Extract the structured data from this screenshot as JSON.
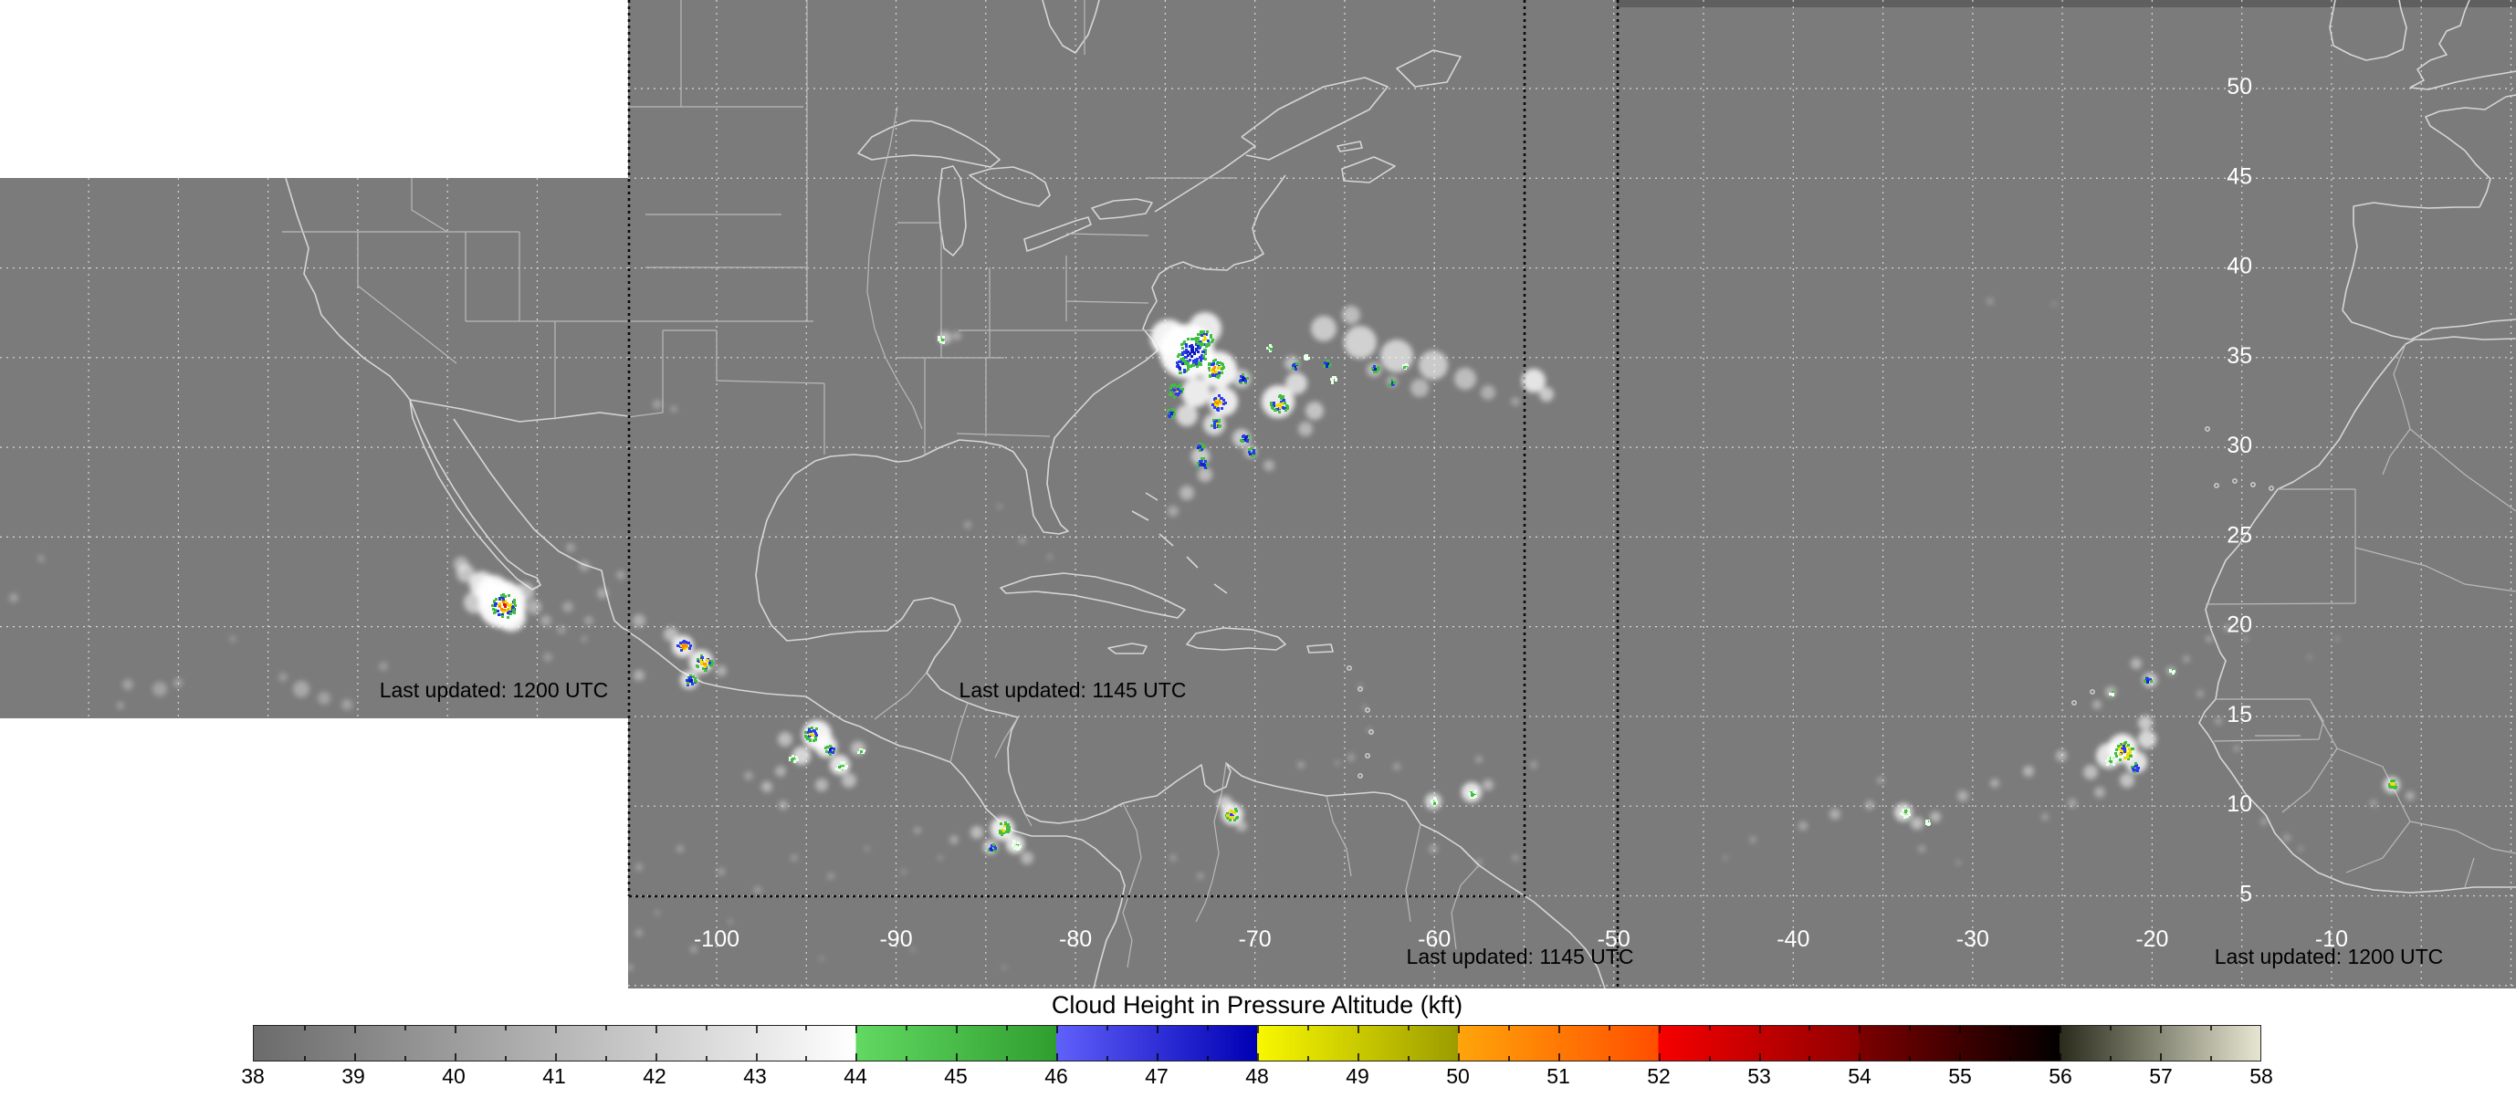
{
  "map": {
    "background": "#7b7b7b",
    "top_strip_color": "#5f5f5f",
    "coast_color": "#d6d6d6",
    "inner_border_color": "#b9b9b9",
    "graticule_color": "#e2e2e2",
    "domain_border_color": "#0a0a0a",
    "geo_label_color": "#ffffff",
    "updated_label_color": "#000000",
    "lon_ticks": [
      {
        "label": "-100",
        "lon": -100
      },
      {
        "label": "-90",
        "lon": -90
      },
      {
        "label": "-80",
        "lon": -80
      },
      {
        "label": "-70",
        "lon": -70
      },
      {
        "label": "-60",
        "lon": -60
      },
      {
        "label": "-50",
        "lon": -50
      },
      {
        "label": "-40",
        "lon": -40
      },
      {
        "label": "-30",
        "lon": -30
      },
      {
        "label": "-20",
        "lon": -20
      },
      {
        "label": "-10",
        "lon": -10
      }
    ],
    "lat_ticks": [
      {
        "label": "50",
        "lat": 50
      },
      {
        "label": "45",
        "lat": 45
      },
      {
        "label": "40",
        "lat": 40
      },
      {
        "label": "35",
        "lat": 35
      },
      {
        "label": "30",
        "lat": 30
      },
      {
        "label": "25",
        "lat": 25
      },
      {
        "label": "20",
        "lat": 20
      },
      {
        "label": "15",
        "lat": 15
      },
      {
        "label": "10",
        "lat": 10
      },
      {
        "label": "5",
        "lat": 5
      }
    ],
    "updated_labels": [
      {
        "id": "goes-west",
        "text": "Last updated: 1200 UTC"
      },
      {
        "id": "goes-east",
        "text": "Last updated: 1145 UTC"
      },
      {
        "id": "goes-east-south",
        "text": "Last updated: 1145 UTC"
      },
      {
        "id": "meteosat",
        "text": "Last updated: 1200 UTC"
      }
    ]
  },
  "colorbar": {
    "title": "Cloud Height in Pressure Altitude (kft)",
    "min": 38,
    "max": 58,
    "tick_labels": [
      "38",
      "39",
      "40",
      "41",
      "42",
      "43",
      "44",
      "45",
      "46",
      "47",
      "48",
      "49",
      "50",
      "51",
      "52",
      "53",
      "54",
      "55",
      "56",
      "57",
      "58"
    ],
    "segments": [
      {
        "from": 38,
        "to": 44,
        "c1": "#6b6b6b",
        "c2": "#ffffff"
      },
      {
        "from": 44,
        "to": 46,
        "c1": "#62d962",
        "c2": "#2f9e2f"
      },
      {
        "from": 46,
        "to": 48,
        "c1": "#6060fa",
        "c2": "#0000b4"
      },
      {
        "from": 48,
        "to": 50,
        "c1": "#f8f800",
        "c2": "#9c9c00"
      },
      {
        "from": 50,
        "to": 52,
        "c1": "#ffa50a",
        "c2": "#ff4e00"
      },
      {
        "from": 52,
        "to": 54,
        "c1": "#f70000",
        "c2": "#8f0000"
      },
      {
        "from": 54,
        "to": 56,
        "c1": "#7c0000",
        "c2": "#020000"
      },
      {
        "from": 56,
        "to": 58,
        "c1": "#2b2b1c",
        "c2": "#e6e6d2"
      }
    ]
  },
  "clouds": {
    "palettes": {
      "conv": [
        "#3fbf3f",
        "#2238e6",
        "#eede00",
        "#ff8c00",
        "#e31212"
      ],
      "blue": [
        "#3fbf3f",
        "#2a3cf0",
        "#1422cf",
        "#0a18b8"
      ],
      "blueyellow": [
        "#3fbf3f",
        "#2a3cf0",
        "#eede00"
      ],
      "yellow": [
        "#3fbf3f",
        "#2a3cf0",
        "#eede00",
        "#ff9800"
      ],
      "orange": [
        "#2a3cf0",
        "#eede00",
        "#ff8c00"
      ],
      "green": [
        "#e8ffe8",
        "#3fbf3f"
      ],
      "yellowgreen": [
        "#3fbf3f",
        "#eede00"
      ],
      "greenblue": [
        "#3fbf3f",
        "#eede00",
        "#2a3cf0"
      ],
      "mixed": [
        "#3fbf3f",
        "#eede00",
        "#2a3cf0",
        "#ffe000"
      ]
    },
    "blobs": [
      [
        550,
        662,
        26,
        0.95
      ],
      [
        540,
        648,
        18,
        0.9
      ],
      [
        528,
        640,
        14,
        0.8
      ],
      [
        560,
        676,
        16,
        0.85
      ],
      [
        520,
        660,
        12,
        0.6
      ],
      [
        575,
        648,
        10,
        0.5
      ],
      [
        585,
        665,
        8,
        0.4
      ],
      [
        510,
        628,
        10,
        0.55
      ],
      [
        505,
        618,
        8,
        0.45
      ],
      [
        598,
        680,
        6,
        0.35
      ],
      [
        615,
        690,
        5,
        0.25
      ],
      [
        140,
        750,
        6,
        0.3
      ],
      [
        175,
        755,
        8,
        0.3
      ],
      [
        195,
        748,
        5,
        0.3
      ],
      [
        330,
        755,
        9,
        0.35
      ],
      [
        355,
        765,
        7,
        0.3
      ],
      [
        380,
        772,
        6,
        0.3
      ],
      [
        310,
        742,
        5,
        0.25
      ],
      [
        132,
        773,
        4,
        0.3
      ],
      [
        15,
        655,
        5,
        0.3
      ],
      [
        45,
        612,
        4,
        0.25
      ],
      [
        420,
        730,
        5,
        0.25
      ],
      [
        600,
        720,
        5,
        0.25
      ],
      [
        640,
        700,
        4,
        0.2
      ],
      [
        255,
        700,
        4,
        0.2
      ],
      [
        1300,
        385,
        30,
        0.95
      ],
      [
        1280,
        370,
        20,
        0.9
      ],
      [
        1320,
        360,
        18,
        0.85
      ],
      [
        1335,
        405,
        20,
        0.9
      ],
      [
        1310,
        430,
        16,
        0.85
      ],
      [
        1340,
        440,
        16,
        0.85
      ],
      [
        1300,
        455,
        12,
        0.7
      ],
      [
        1330,
        465,
        12,
        0.7
      ],
      [
        1360,
        480,
        10,
        0.6
      ],
      [
        1315,
        500,
        10,
        0.6
      ],
      [
        1320,
        520,
        8,
        0.5
      ],
      [
        1300,
        540,
        8,
        0.45
      ],
      [
        1285,
        560,
        6,
        0.35
      ],
      [
        1360,
        415,
        10,
        0.6
      ],
      [
        1400,
        440,
        18,
        0.85
      ],
      [
        1420,
        420,
        12,
        0.7
      ],
      [
        1415,
        398,
        8,
        0.5
      ],
      [
        1440,
        450,
        10,
        0.55
      ],
      [
        1430,
        470,
        8,
        0.45
      ],
      [
        1370,
        495,
        7,
        0.5
      ],
      [
        1390,
        510,
        6,
        0.4
      ],
      [
        1505,
        405,
        8,
        0.5
      ],
      [
        1525,
        418,
        6,
        0.4
      ],
      [
        1450,
        360,
        14,
        0.6
      ],
      [
        1490,
        375,
        18,
        0.65
      ],
      [
        1530,
        390,
        18,
        0.65
      ],
      [
        1570,
        400,
        16,
        0.6
      ],
      [
        1605,
        415,
        12,
        0.5
      ],
      [
        1480,
        345,
        10,
        0.5
      ],
      [
        1555,
        425,
        10,
        0.45
      ],
      [
        1630,
        430,
        8,
        0.4
      ],
      [
        1660,
        440,
        5,
        0.3
      ],
      [
        1680,
        417,
        13,
        0.8
      ],
      [
        1694,
        432,
        8,
        0.6
      ],
      [
        1035,
        370,
        7,
        0.5
      ],
      [
        1048,
        368,
        5,
        0.35
      ],
      [
        720,
        443,
        5,
        0.3
      ],
      [
        738,
        448,
        4,
        0.25
      ],
      [
        1060,
        575,
        4,
        0.3
      ],
      [
        1120,
        592,
        4,
        0.25
      ],
      [
        1095,
        555,
        3,
        0.25
      ],
      [
        1150,
        610,
        3,
        0.25
      ],
      [
        748,
        708,
        12,
        0.85
      ],
      [
        768,
        725,
        13,
        0.85
      ],
      [
        755,
        745,
        10,
        0.75
      ],
      [
        735,
        695,
        8,
        0.5
      ],
      [
        700,
        680,
        7,
        0.4
      ],
      [
        660,
        650,
        6,
        0.35
      ],
      [
        680,
        630,
        5,
        0.3
      ],
      [
        640,
        620,
        6,
        0.3
      ],
      [
        625,
        600,
        5,
        0.3
      ],
      [
        700,
        740,
        6,
        0.4
      ],
      [
        790,
        735,
        6,
        0.4
      ],
      [
        622,
        665,
        6,
        0.3
      ],
      [
        645,
        680,
        5,
        0.3
      ],
      [
        895,
        805,
        16,
        0.9
      ],
      [
        905,
        818,
        12,
        0.85
      ],
      [
        920,
        838,
        11,
        0.8
      ],
      [
        878,
        828,
        10,
        0.7
      ],
      [
        860,
        810,
        8,
        0.5
      ],
      [
        940,
        820,
        8,
        0.5
      ],
      [
        930,
        855,
        8,
        0.5
      ],
      [
        900,
        860,
        7,
        0.45
      ],
      [
        855,
        845,
        6,
        0.4
      ],
      [
        840,
        862,
        6,
        0.45
      ],
      [
        858,
        882,
        5,
        0.4
      ],
      [
        820,
        850,
        5,
        0.3
      ],
      [
        660,
        915,
        4,
        0.3
      ],
      [
        700,
        950,
        4,
        0.3
      ],
      [
        745,
        930,
        4,
        0.3
      ],
      [
        790,
        955,
        4,
        0.3
      ],
      [
        830,
        975,
        4,
        0.3
      ],
      [
        700,
        1022,
        4,
        0.3
      ],
      [
        760,
        1040,
        4,
        0.3
      ],
      [
        690,
        1060,
        4,
        0.25
      ],
      [
        640,
        1010,
        4,
        0.25
      ],
      [
        870,
        940,
        4,
        0.25
      ],
      [
        910,
        960,
        4,
        0.25
      ],
      [
        950,
        930,
        3,
        0.25
      ],
      [
        990,
        955,
        3,
        0.25
      ],
      [
        1030,
        940,
        3,
        0.25
      ],
      [
        720,
        1000,
        3,
        0.25
      ],
      [
        800,
        1010,
        3,
        0.25
      ],
      [
        900,
        1050,
        3,
        0.2
      ],
      [
        1000,
        1040,
        3,
        0.2
      ],
      [
        1100,
        1060,
        3,
        0.2
      ],
      [
        1098,
        908,
        13,
        0.85
      ],
      [
        1112,
        925,
        10,
        0.8
      ],
      [
        1085,
        928,
        8,
        0.6
      ],
      [
        1070,
        912,
        7,
        0.5
      ],
      [
        1125,
        940,
        7,
        0.45
      ],
      [
        1045,
        920,
        5,
        0.35
      ],
      [
        1005,
        910,
        4,
        0.3
      ],
      [
        1350,
        892,
        12,
        0.8
      ],
      [
        1342,
        880,
        8,
        0.6
      ],
      [
        1360,
        905,
        6,
        0.45
      ],
      [
        1570,
        878,
        9,
        0.7
      ],
      [
        1612,
        868,
        11,
        0.8
      ],
      [
        1630,
        860,
        6,
        0.45
      ],
      [
        1530,
        840,
        4,
        0.3
      ],
      [
        1480,
        830,
        4,
        0.3
      ],
      [
        1465,
        836,
        3,
        0.25
      ],
      [
        1425,
        838,
        4,
        0.3
      ],
      [
        1680,
        838,
        4,
        0.3
      ],
      [
        1620,
        832,
        4,
        0.3
      ],
      [
        1570,
        930,
        5,
        0.3
      ],
      [
        1620,
        945,
        4,
        0.25
      ],
      [
        1660,
        940,
        4,
        0.25
      ],
      [
        1500,
        800,
        3,
        0.25
      ],
      [
        1495,
        775,
        3,
        0.25
      ],
      [
        1490,
        752,
        3,
        0.25
      ],
      [
        1285,
        940,
        4,
        0.25
      ],
      [
        1315,
        960,
        4,
        0.25
      ],
      [
        1975,
        905,
        5,
        0.35
      ],
      [
        2010,
        892,
        6,
        0.4
      ],
      [
        2048,
        882,
        5,
        0.4
      ],
      [
        2085,
        890,
        10,
        0.7
      ],
      [
        2100,
        902,
        7,
        0.5
      ],
      [
        2120,
        895,
        6,
        0.45
      ],
      [
        2150,
        872,
        6,
        0.4
      ],
      [
        2185,
        858,
        5,
        0.4
      ],
      [
        2222,
        845,
        6,
        0.45
      ],
      [
        2258,
        828,
        6,
        0.45
      ],
      [
        2290,
        846,
        8,
        0.5
      ],
      [
        2310,
        828,
        14,
        0.8
      ],
      [
        2325,
        820,
        16,
        0.9
      ],
      [
        2340,
        835,
        12,
        0.8
      ],
      [
        2352,
        810,
        10,
        0.7
      ],
      [
        2350,
        792,
        8,
        0.6
      ],
      [
        2330,
        855,
        8,
        0.55
      ],
      [
        2300,
        868,
        6,
        0.4
      ],
      [
        2270,
        880,
        5,
        0.35
      ],
      [
        2240,
        895,
        4,
        0.3
      ],
      [
        2355,
        745,
        8,
        0.6
      ],
      [
        2340,
        727,
        6,
        0.45
      ],
      [
        2312,
        758,
        6,
        0.45
      ],
      [
        2378,
        735,
        5,
        0.4
      ],
      [
        2395,
        722,
        4,
        0.3
      ],
      [
        2297,
        772,
        5,
        0.4
      ],
      [
        2420,
        700,
        4,
        0.3
      ],
      [
        2440,
        688,
        4,
        0.3
      ],
      [
        2460,
        700,
        3,
        0.25
      ],
      [
        2410,
        760,
        4,
        0.3
      ],
      [
        2430,
        790,
        4,
        0.3
      ],
      [
        2450,
        820,
        4,
        0.25
      ],
      [
        2480,
        900,
        4,
        0.3
      ],
      [
        2505,
        918,
        4,
        0.3
      ],
      [
        2520,
        930,
        3,
        0.25
      ],
      [
        2620,
        860,
        9,
        0.7
      ],
      [
        2640,
        872,
        5,
        0.4
      ],
      [
        2600,
        880,
        4,
        0.3
      ],
      [
        1920,
        920,
        4,
        0.25
      ],
      [
        1890,
        940,
        3,
        0.2
      ],
      [
        2180,
        330,
        4,
        0.25
      ],
      [
        2250,
        333,
        3,
        0.2
      ],
      [
        2060,
        855,
        4,
        0.3
      ],
      [
        2105,
        930,
        4,
        0.3
      ],
      [
        2145,
        945,
        3,
        0.25
      ],
      [
        2560,
        700,
        3,
        0.2
      ],
      [
        2530,
        720,
        3,
        0.2
      ]
    ],
    "cells": [
      [
        551,
        663,
        13,
        "conv"
      ],
      [
        1305,
        385,
        16,
        "blue"
      ],
      [
        1318,
        370,
        9,
        "blueyellow"
      ],
      [
        1293,
        400,
        8,
        "blue"
      ],
      [
        1330,
        403,
        10,
        "yellow"
      ],
      [
        1287,
        427,
        8,
        "blueyellow"
      ],
      [
        1333,
        440,
        8,
        "orange"
      ],
      [
        1360,
        414,
        5,
        "blue"
      ],
      [
        1400,
        442,
        10,
        "blueyellow"
      ],
      [
        1418,
        400,
        4,
        "blue"
      ],
      [
        1281,
        452,
        5,
        "blue"
      ],
      [
        1330,
        463,
        6,
        "blueyellow"
      ],
      [
        1362,
        479,
        5,
        "blue"
      ],
      [
        1313,
        489,
        4,
        "blue"
      ],
      [
        1370,
        494,
        4,
        "blue"
      ],
      [
        1316,
        507,
        6,
        "blue"
      ],
      [
        1505,
        403,
        4,
        "blue"
      ],
      [
        1523,
        418,
        3,
        "blue"
      ],
      [
        1538,
        400,
        3,
        "green"
      ],
      [
        1390,
        380,
        3,
        "green"
      ],
      [
        1430,
        390,
        3,
        "green"
      ],
      [
        1452,
        398,
        4,
        "blue"
      ],
      [
        1460,
        415,
        3,
        "green"
      ],
      [
        1030,
        371,
        4,
        "green"
      ],
      [
        748,
        707,
        7,
        "orange"
      ],
      [
        770,
        725,
        9,
        "yellow"
      ],
      [
        755,
        745,
        6,
        "blue"
      ],
      [
        888,
        803,
        8,
        "blueyellow"
      ],
      [
        908,
        820,
        5,
        "blue"
      ],
      [
        920,
        838,
        6,
        "green"
      ],
      [
        868,
        830,
        4,
        "green"
      ],
      [
        942,
        822,
        3,
        "green"
      ],
      [
        1098,
        906,
        7,
        "yellowgreen"
      ],
      [
        1112,
        924,
        5,
        "green"
      ],
      [
        1086,
        928,
        4,
        "blue"
      ],
      [
        1348,
        891,
        7,
        "greenblue"
      ],
      [
        1570,
        877,
        4,
        "green"
      ],
      [
        1612,
        868,
        5,
        "green"
      ],
      [
        2325,
        822,
        10,
        "mixed"
      ],
      [
        2310,
        832,
        6,
        "green"
      ],
      [
        2338,
        840,
        5,
        "blueyellow"
      ],
      [
        2086,
        889,
        5,
        "green"
      ],
      [
        2352,
        744,
        4,
        "blue"
      ],
      [
        2378,
        734,
        3,
        "green"
      ],
      [
        2312,
        757,
        3,
        "green"
      ],
      [
        2620,
        858,
        5,
        "yellowgreen"
      ],
      [
        2110,
        900,
        3,
        "green"
      ]
    ]
  }
}
